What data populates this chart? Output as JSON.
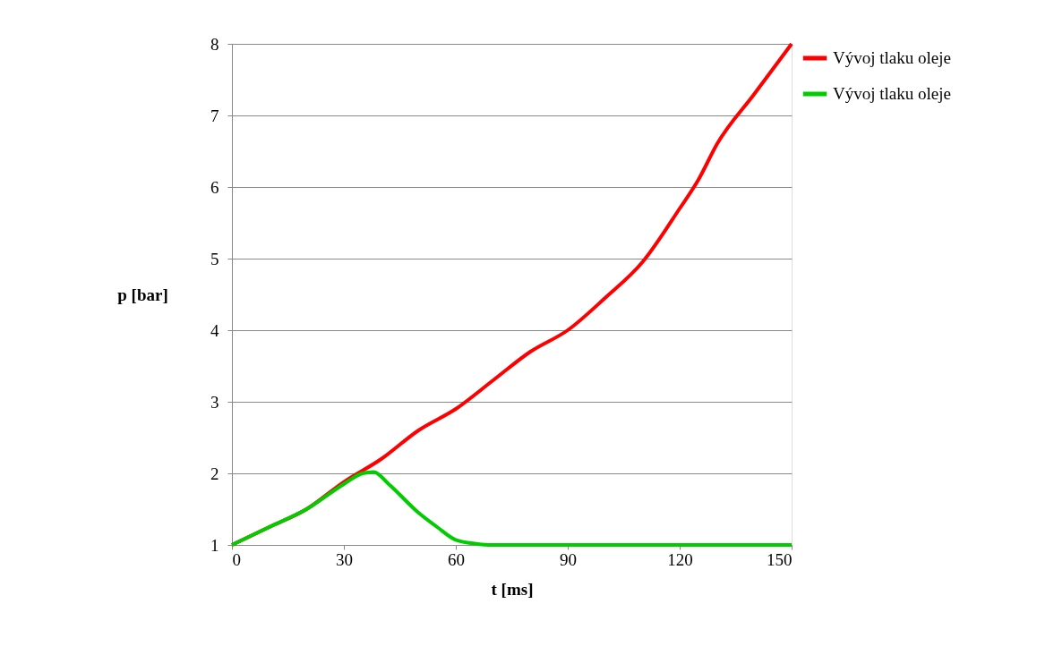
{
  "chart_data": {
    "type": "line",
    "xlabel": "t [ms]",
    "ylabel": "p [bar]",
    "xlim": [
      0,
      150
    ],
    "xticks": [
      0,
      30,
      60,
      90,
      120,
      150
    ],
    "ylim": [
      1,
      8
    ],
    "yticks": [
      1,
      2,
      3,
      4,
      5,
      6,
      7,
      8
    ],
    "grid": "y",
    "legend": "right",
    "marker": "none",
    "line_style": "solid",
    "series": [
      {
        "name": "Vývoj tlaku oleje",
        "color": "#ff0000",
        "x": [
          0,
          10,
          20,
          30,
          40,
          50,
          60,
          70,
          80,
          90,
          100,
          110,
          120,
          125,
          130,
          140,
          150
        ],
        "values": [
          1,
          1.25,
          1.5,
          1.88,
          2.2,
          2.6,
          2.9,
          3.3,
          3.7,
          4.0,
          4.45,
          4.95,
          5.7,
          6.1,
          6.6,
          7.3,
          8.0
        ]
      },
      {
        "name": "Vývoj tlaku oleje",
        "color": "#00cc00",
        "x": [
          0,
          10,
          20,
          30,
          35,
          38,
          42,
          50,
          55,
          60,
          65,
          70,
          80,
          90,
          100,
          110,
          120,
          130,
          140,
          150
        ],
        "values": [
          1,
          1.25,
          1.5,
          1.85,
          2.0,
          2.02,
          1.85,
          1.45,
          1.25,
          1.07,
          1.02,
          1.0,
          1.0,
          1.0,
          1.0,
          1.0,
          1.0,
          1.0,
          1.0,
          1.0
        ]
      }
    ]
  }
}
